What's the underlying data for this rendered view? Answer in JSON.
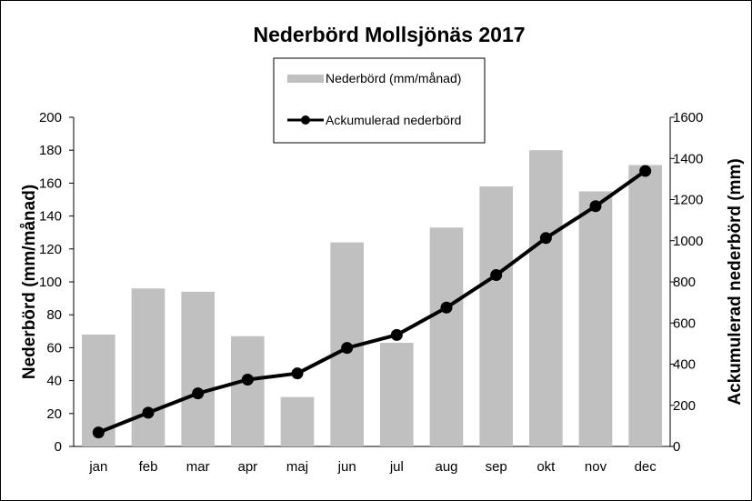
{
  "chart_data": {
    "type": "bar",
    "title": "Nederbörd Mollsjönäs 2017",
    "categories": [
      "jan",
      "feb",
      "mar",
      "apr",
      "maj",
      "jun",
      "jul",
      "aug",
      "sep",
      "okt",
      "nov",
      "dec"
    ],
    "series": [
      {
        "name": "Nederbörd (mm/månad)",
        "type": "bar",
        "axis": "left",
        "color": "#c0c0c0",
        "values": [
          68,
          96,
          94,
          67,
          30,
          124,
          63,
          133,
          158,
          180,
          155,
          171
        ]
      },
      {
        "name": "Ackumulerad nederbörd",
        "type": "line",
        "axis": "right",
        "color": "#000000",
        "values": [
          68,
          164,
          258,
          325,
          355,
          479,
          542,
          675,
          833,
          1013,
          1168,
          1339
        ]
      }
    ],
    "ylabel": "Nederbörd (mm/månad)",
    "ylabel_right": "Ackumulerad nederbörd (mm)",
    "ylim": [
      0,
      200
    ],
    "ylim_right": [
      0,
      1600
    ],
    "yticks": [
      "0",
      "20",
      "40",
      "60",
      "80",
      "100",
      "120",
      "140",
      "160",
      "180",
      "200"
    ],
    "yticks_right": [
      "0",
      "200",
      "400",
      "600",
      "800",
      "1000",
      "1200",
      "1400",
      "1600"
    ],
    "grid": false,
    "legend_position": "top-center"
  }
}
